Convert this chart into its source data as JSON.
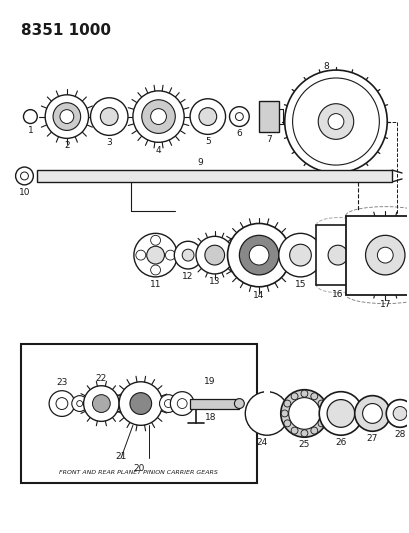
{
  "title": "8351 1000",
  "bg_color": "#ffffff",
  "line_color": "#1a1a1a",
  "box_label": "FRONT AND REAR PLANET PINION CARRIER GEARS"
}
